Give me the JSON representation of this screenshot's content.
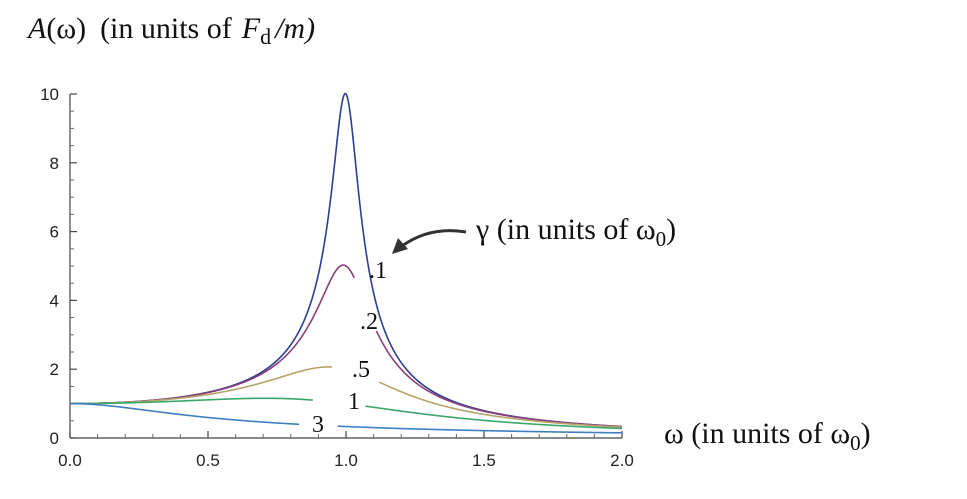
{
  "chart_data": {
    "type": "line",
    "title_parts": {
      "a_symbol": "A",
      "a_arg": "(ω)",
      "units_prefix": "(in units of",
      "f_symbol": "F",
      "f_subscript": "d",
      "units_suffix": "/m)"
    },
    "xlabel": "ω  (in units of ω",
    "xlabel_sub": "0",
    "xlabel_close": ")",
    "legend_title": "γ  (in units of ω",
    "legend_title_sub": "0",
    "legend_title_close": ")",
    "xlim": [
      0,
      2
    ],
    "ylim": [
      0,
      10
    ],
    "x_ticks": [
      "0.0",
      "0.5",
      "1.0",
      "1.5",
      "2.0"
    ],
    "y_ticks": [
      "0",
      "2",
      "4",
      "6",
      "8",
      "10"
    ],
    "grid": false,
    "curve_function": "A(w) = 1 / sqrt((1 - w^2)^2 + (gamma*w)^2)",
    "series": [
      {
        "gamma": 0.1,
        "label": "",
        "color": "#2c3e8f"
      },
      {
        "gamma": 0.2,
        "label": ".1",
        "color": "#8a3e7a"
      },
      {
        "gamma": 0.5,
        "label": ".2",
        "color": "#b5a36a"
      },
      {
        "gamma": 1.0,
        "label": ".5",
        "color": "#3aa66a"
      },
      {
        "gamma": 3.0,
        "label": "1",
        "color": "#3f7fbf"
      }
    ],
    "extra_label": "3"
  }
}
